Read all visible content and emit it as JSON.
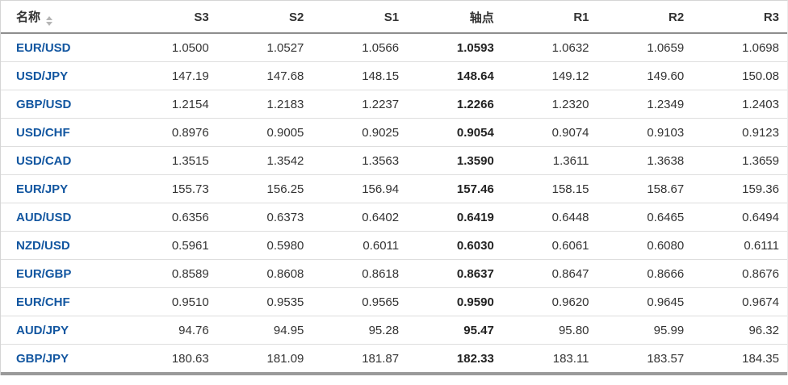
{
  "table": {
    "columns": [
      "名称",
      "S3",
      "S2",
      "S1",
      "轴点",
      "R1",
      "R2",
      "R3"
    ],
    "rows": [
      {
        "pair": "EUR/USD",
        "values": [
          "1.0500",
          "1.0527",
          "1.0566",
          "1.0593",
          "1.0632",
          "1.0659",
          "1.0698"
        ]
      },
      {
        "pair": "USD/JPY",
        "values": [
          "147.19",
          "147.68",
          "148.15",
          "148.64",
          "149.12",
          "149.60",
          "150.08"
        ]
      },
      {
        "pair": "GBP/USD",
        "values": [
          "1.2154",
          "1.2183",
          "1.2237",
          "1.2266",
          "1.2320",
          "1.2349",
          "1.2403"
        ]
      },
      {
        "pair": "USD/CHF",
        "values": [
          "0.8976",
          "0.9005",
          "0.9025",
          "0.9054",
          "0.9074",
          "0.9103",
          "0.9123"
        ]
      },
      {
        "pair": "USD/CAD",
        "values": [
          "1.3515",
          "1.3542",
          "1.3563",
          "1.3590",
          "1.3611",
          "1.3638",
          "1.3659"
        ]
      },
      {
        "pair": "EUR/JPY",
        "values": [
          "155.73",
          "156.25",
          "156.94",
          "157.46",
          "158.15",
          "158.67",
          "159.36"
        ]
      },
      {
        "pair": "AUD/USD",
        "values": [
          "0.6356",
          "0.6373",
          "0.6402",
          "0.6419",
          "0.6448",
          "0.6465",
          "0.6494"
        ]
      },
      {
        "pair": "NZD/USD",
        "values": [
          "0.5961",
          "0.5980",
          "0.6011",
          "0.6030",
          "0.6061",
          "0.6080",
          "0.6111"
        ]
      },
      {
        "pair": "EUR/GBP",
        "values": [
          "0.8589",
          "0.8608",
          "0.8618",
          "0.8637",
          "0.8647",
          "0.8666",
          "0.8676"
        ]
      },
      {
        "pair": "EUR/CHF",
        "values": [
          "0.9510",
          "0.9535",
          "0.9565",
          "0.9590",
          "0.9620",
          "0.9645",
          "0.9674"
        ]
      },
      {
        "pair": "AUD/JPY",
        "values": [
          "94.76",
          "94.95",
          "95.28",
          "95.47",
          "95.80",
          "95.99",
          "96.32"
        ]
      },
      {
        "pair": "GBP/JPY",
        "values": [
          "180.63",
          "181.09",
          "181.87",
          "182.33",
          "183.11",
          "183.57",
          "184.35"
        ]
      }
    ]
  },
  "icons": {
    "name_sort": "sort-up-down-arrows"
  },
  "colors": {
    "pair_link": "#1256a0",
    "header_text": "#333333",
    "cell_text": "#333333",
    "row_divider": "#dedede",
    "header_rule": "#8e8e8e",
    "bottom_bar": "#9a9a9a",
    "sort_arrow": "#b5b5b5"
  }
}
